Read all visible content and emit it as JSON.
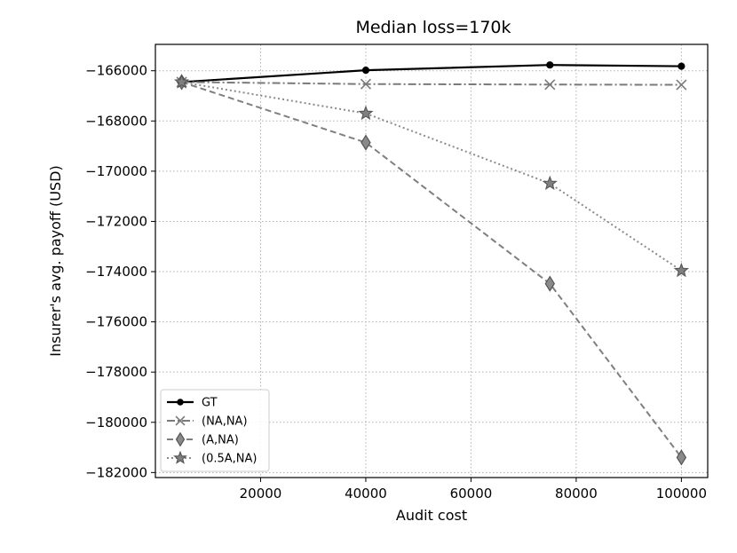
{
  "chart_data": {
    "type": "line",
    "title": "Median loss=170k",
    "xlabel": "Audit cost",
    "ylabel": "Insurer's avg. payoff (USD)",
    "xlim": [
      0,
      105000
    ],
    "ylim": [
      -182200,
      -164950
    ],
    "xticks": [
      20000,
      40000,
      60000,
      80000,
      100000
    ],
    "yticks": [
      -166000,
      -168000,
      -170000,
      -172000,
      -174000,
      -176000,
      -178000,
      -180000,
      -182000
    ],
    "grid": true,
    "legend_position": "lower-left",
    "x": [
      5000,
      40000,
      75000,
      100000
    ],
    "series": [
      {
        "name": "GT",
        "values": [
          -166450,
          -165980,
          -165770,
          -165820
        ],
        "color": "#000000",
        "dash": "solid",
        "marker": "circle",
        "line_width": 2.2,
        "marker_fill": "#000000"
      },
      {
        "name": "(NA,NA)",
        "values": [
          -166450,
          -166530,
          -166550,
          -166560
        ],
        "color": "#7a7a7a",
        "dash": "dashdot",
        "marker": "x",
        "line_width": 2,
        "marker_fill": "#7a7a7a"
      },
      {
        "name": "(A,NA)",
        "values": [
          -166450,
          -168860,
          -174480,
          -181400
        ],
        "color": "#7f7f7f",
        "dash": "dashed",
        "marker": "diamond",
        "line_width": 2,
        "marker_fill": "#8a8a8a"
      },
      {
        "name": "(0.5A,NA)",
        "values": [
          -166450,
          -167700,
          -170490,
          -173960
        ],
        "color": "#8a8a8a",
        "dash": "dotted",
        "marker": "star",
        "line_width": 2,
        "marker_fill": "#808080"
      }
    ]
  }
}
